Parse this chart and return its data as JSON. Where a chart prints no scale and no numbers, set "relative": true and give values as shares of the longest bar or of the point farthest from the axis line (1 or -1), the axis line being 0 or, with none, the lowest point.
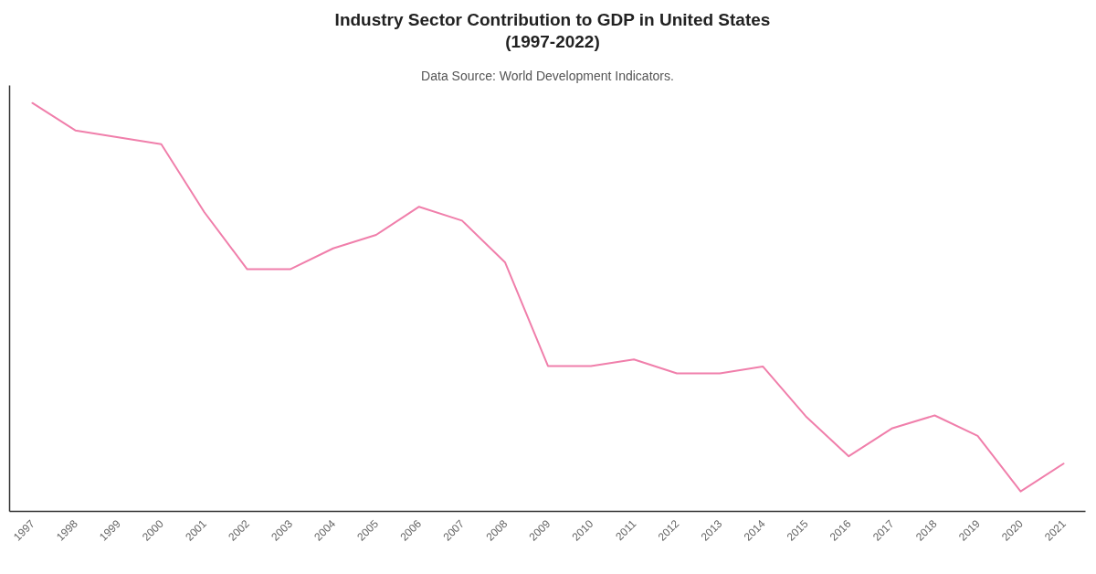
{
  "chart_data": {
    "type": "line",
    "title": "Industry Sector Contribution to GDP in United States\n(1997-2022)",
    "subtitle": "Data Source: World Development Indicators.",
    "categories": [
      "1997",
      "1998",
      "1999",
      "2000",
      "2001",
      "2002",
      "2003",
      "2004",
      "2005",
      "2006",
      "2007",
      "2008",
      "2009",
      "2010",
      "2011",
      "2012",
      "2013",
      "2014",
      "2015",
      "2016",
      "2017",
      "2018",
      "2019",
      "2020",
      "2021"
    ],
    "series": [
      {
        "color": "#f07fab",
        "values": [
          1.0,
          0.933,
          0.916,
          0.899,
          0.733,
          0.593,
          0.593,
          0.644,
          0.677,
          0.746,
          0.712,
          0.61,
          0.356,
          0.356,
          0.372,
          0.338,
          0.338,
          0.355,
          0.233,
          0.135,
          0.203,
          0.235,
          0.185,
          0.049,
          0.117
        ]
      }
    ],
    "relative": true,
    "line_style": "solid"
  }
}
